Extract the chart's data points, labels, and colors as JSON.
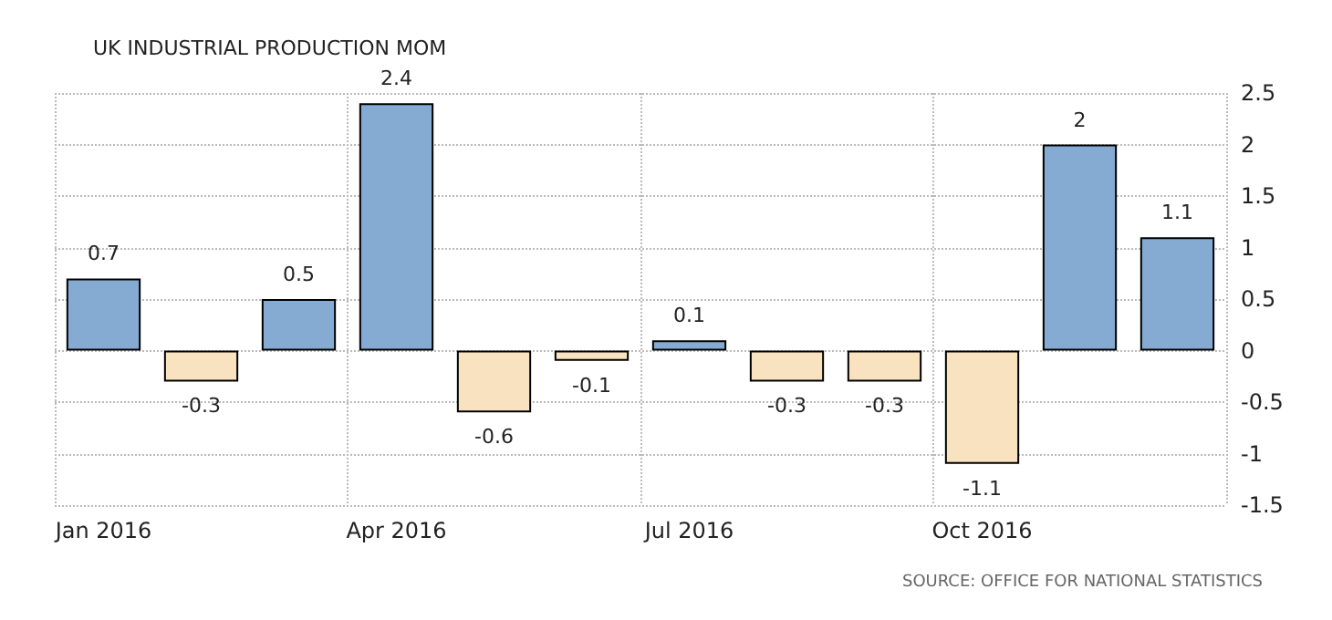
{
  "chart_data": {
    "type": "bar",
    "title": "UK INDUSTRIAL PRODUCTION MOM",
    "categories": [
      "Jan 2016",
      null,
      null,
      "Apr 2016",
      null,
      null,
      "Jul 2016",
      null,
      null,
      "Oct 2016",
      null,
      null
    ],
    "values": [
      0.7,
      -0.3,
      0.5,
      2.4,
      -0.6,
      -0.1,
      0.1,
      -0.3,
      -0.3,
      -1.1,
      2,
      1.1
    ],
    "colors": [
      "#86abd2",
      "#f8e2bf",
      "#86abd2",
      "#86abd2",
      "#f8e2bf",
      "#f8e2bf",
      "#86abd2",
      "#f8e2bf",
      "#f8e2bf",
      "#f8e2bf",
      "#86abd2",
      "#86abd2"
    ],
    "ylim": [
      -1.5,
      2.5
    ],
    "yticks": [
      -1.5,
      -1,
      -0.5,
      0,
      0.5,
      1,
      1.5,
      2,
      2.5
    ],
    "grid": true,
    "data_labels": true,
    "annotations": [
      "SOURCE: OFFICE FOR NATIONAL STATISTICS"
    ]
  }
}
